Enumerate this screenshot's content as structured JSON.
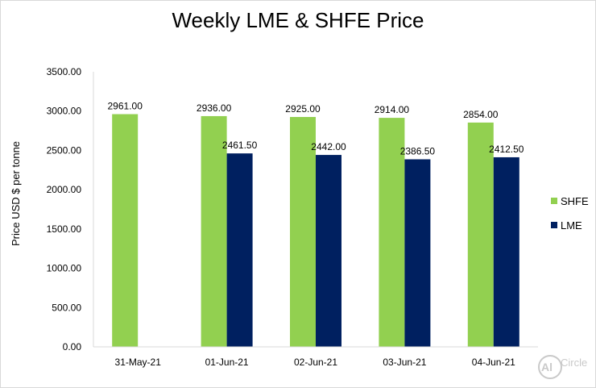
{
  "chart_data": {
    "type": "bar",
    "title": "Weekly LME & SHFE Price",
    "ylabel": "Price  USD $  per  tonne",
    "xlabel": "",
    "categories": [
      "31-May-21",
      "01-Jun-21",
      "02-Jun-21",
      "03-Jun-21",
      "04-Jun-21"
    ],
    "series": [
      {
        "name": "SHFE",
        "color": "#92d050",
        "values": [
          2961.0,
          2936.0,
          2925.0,
          2914.0,
          2854.0
        ],
        "labels": [
          "2961.00",
          "2936.00",
          "2925.00",
          "2914.00",
          "2854.00"
        ]
      },
      {
        "name": "LME",
        "color": "#002060",
        "values": [
          null,
          2461.5,
          2442.0,
          2386.5,
          2412.5
        ],
        "labels": [
          "",
          "2461.50",
          "2442.00",
          "2386.50",
          "2412.50"
        ]
      }
    ],
    "ylim": [
      0,
      3500
    ],
    "yticks": [
      0,
      500,
      1000,
      1500,
      2000,
      2500,
      3000,
      3500
    ],
    "ytick_labels": [
      "0.00",
      "500.00",
      "1000.00",
      "1500.00",
      "2000.00",
      "2500.00",
      "3000.00",
      "3500.00"
    ],
    "grid": false,
    "legend_position": "right"
  },
  "logo": {
    "mark": "Al",
    "name": "Circle"
  }
}
